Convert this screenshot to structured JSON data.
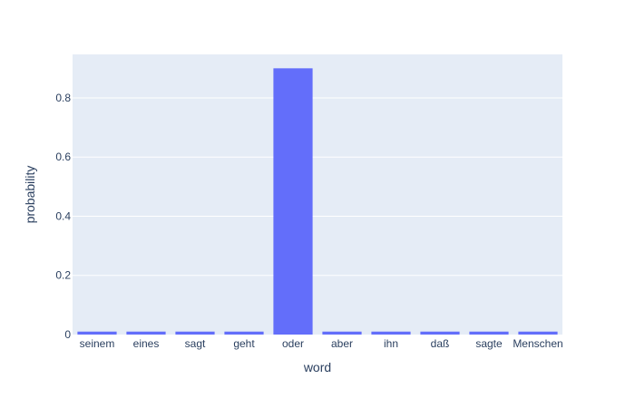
{
  "chart_data": {
    "type": "bar",
    "categories": [
      "seinem",
      "eines",
      "sagt",
      "geht",
      "oder",
      "aber",
      "ihn",
      "daß",
      "sagte",
      "Menschen"
    ],
    "values": [
      0.01,
      0.01,
      0.01,
      0.01,
      0.9,
      0.01,
      0.01,
      0.01,
      0.01,
      0.01
    ],
    "xlabel": "word",
    "ylabel": "probability",
    "ylim": [
      0,
      0.947
    ],
    "yticks": [
      0,
      0.2,
      0.4,
      0.6,
      0.8
    ],
    "ytick_labels": [
      "0",
      "0.2",
      "0.4",
      "0.6",
      "0.8"
    ],
    "grid": true,
    "bar_color": "#636efa",
    "plot_bg": "#e5ecf6",
    "grid_color": "#ffffff",
    "text_color": "#2a3f5f"
  }
}
